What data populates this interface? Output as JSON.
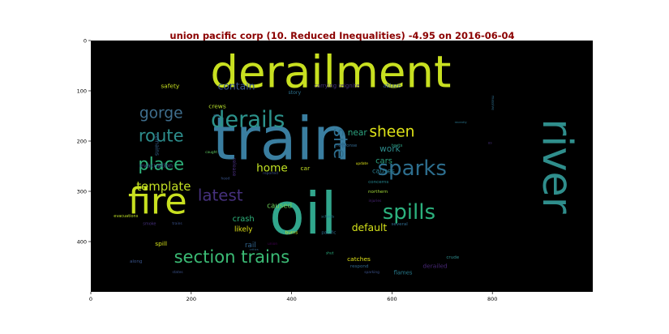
{
  "chart_data": {
    "type": "wordcloud",
    "title": "union pacific corp (10. Reduced Inequalities) -4.95 on 2016-06-04",
    "title_color": "#8b0000",
    "background": "#000000",
    "xlim": [
      0,
      1000
    ],
    "ylim": [
      500,
      0
    ],
    "x_ticks": [
      0,
      200,
      400,
      600,
      800
    ],
    "y_ticks": [
      0,
      100,
      200,
      300,
      400
    ],
    "words": [
      {
        "text": "derailment",
        "x": 478,
        "y": 62,
        "size": 88,
        "color": "#c8e020",
        "rotate": 0
      },
      {
        "text": "train",
        "x": 380,
        "y": 197,
        "size": 118,
        "color": "#3a7ea0",
        "rotate": 0
      },
      {
        "text": "oil",
        "x": 423,
        "y": 345,
        "size": 115,
        "color": "#31a68c",
        "rotate": 0
      },
      {
        "text": "fire",
        "x": 133,
        "y": 320,
        "size": 72,
        "color": "#c8e020",
        "rotate": 0
      },
      {
        "text": "river",
        "x": 930,
        "y": 250,
        "size": 82,
        "color": "#2f8e8c",
        "rotate": 90
      },
      {
        "text": "derails",
        "x": 313,
        "y": 158,
        "size": 44,
        "color": "#2c928b",
        "rotate": 0
      },
      {
        "text": "sparks",
        "x": 640,
        "y": 255,
        "size": 42,
        "color": "#2d6e8e",
        "rotate": 0
      },
      {
        "text": "spills",
        "x": 634,
        "y": 342,
        "size": 42,
        "color": "#2cb17e",
        "rotate": 0
      },
      {
        "text": "section trains",
        "x": 281,
        "y": 430,
        "size": 34,
        "color": "#3bbb75",
        "rotate": 0
      },
      {
        "text": "gorge",
        "x": 140,
        "y": 145,
        "size": 30,
        "color": "#3f6e8d",
        "rotate": 0
      },
      {
        "text": "route",
        "x": 140,
        "y": 189,
        "size": 34,
        "color": "#2d8d8c",
        "rotate": 0
      },
      {
        "text": "place",
        "x": 140,
        "y": 245,
        "size": 34,
        "color": "#2eb37c",
        "rotate": 0
      },
      {
        "text": "template",
        "x": 145,
        "y": 290,
        "size": 24,
        "color": "#c2df23",
        "rotate": 0
      },
      {
        "text": "latest",
        "x": 258,
        "y": 308,
        "size": 32,
        "color": "#46317e",
        "rotate": 0
      },
      {
        "text": "sheen",
        "x": 600,
        "y": 182,
        "size": 30,
        "color": "#dfe318",
        "rotate": 0
      },
      {
        "text": "site",
        "x": 497,
        "y": 205,
        "size": 34,
        "color": "#2e6e8e",
        "rotate": 90
      },
      {
        "text": "home",
        "x": 361,
        "y": 254,
        "size": 22,
        "color": "#c2e323",
        "rotate": 0
      },
      {
        "text": "contain",
        "x": 290,
        "y": 90,
        "size": 20,
        "color": "#39568c",
        "rotate": 0
      },
      {
        "text": "default",
        "x": 555,
        "y": 372,
        "size": 20,
        "color": "#d5e21a",
        "rotate": 0
      },
      {
        "text": "near",
        "x": 531,
        "y": 184,
        "size": 17,
        "color": "#2ca37f",
        "rotate": 0
      },
      {
        "text": "work",
        "x": 596,
        "y": 216,
        "size": 17,
        "color": "#2e8c8c",
        "rotate": 0
      },
      {
        "text": "cars",
        "x": 584,
        "y": 240,
        "size": 16,
        "color": "#2ba27f",
        "rotate": 0
      },
      {
        "text": "causes",
        "x": 583,
        "y": 260,
        "size": 13,
        "color": "#277a8e",
        "rotate": 0
      },
      {
        "text": "crash",
        "x": 304,
        "y": 356,
        "size": 16,
        "color": "#2eb37c",
        "rotate": 0
      },
      {
        "text": "likely",
        "x": 304,
        "y": 377,
        "size": 14,
        "color": "#e2e418",
        "rotate": 0
      },
      {
        "text": "rail",
        "x": 318,
        "y": 408,
        "size": 14,
        "color": "#32658e",
        "rotate": 0
      },
      {
        "text": "caused",
        "x": 376,
        "y": 330,
        "size": 14,
        "color": "#6dcd59",
        "rotate": 0
      },
      {
        "text": "safety",
        "x": 158,
        "y": 90,
        "size": 12,
        "color": "#c8e020",
        "rotate": 0
      },
      {
        "text": "crews",
        "x": 252,
        "y": 131,
        "size": 12,
        "color": "#b5de2b",
        "rotate": 0
      },
      {
        "text": "story",
        "x": 406,
        "y": 104,
        "size": 10,
        "color": "#2c718e",
        "rotate": 0
      },
      {
        "text": "carrying reignite",
        "x": 490,
        "y": 90,
        "size": 11,
        "color": "#46327e",
        "rotate": 0
      },
      {
        "text": "ablaze",
        "x": 600,
        "y": 90,
        "size": 11,
        "color": "#38588c",
        "rotate": 0
      },
      {
        "text": "pm",
        "x": 250,
        "y": 150,
        "size": 7,
        "color": "#33638d",
        "rotate": 0
      },
      {
        "text": "caught",
        "x": 240,
        "y": 223,
        "size": 7,
        "color": "#5ec962",
        "rotate": 0
      },
      {
        "text": "response",
        "x": 510,
        "y": 210,
        "size": 9,
        "color": "#31688e",
        "rotate": 0
      },
      {
        "text": "tests",
        "x": 610,
        "y": 210,
        "size": 9,
        "color": "#2c9f82",
        "rotate": 0
      },
      {
        "text": "update",
        "x": 540,
        "y": 246,
        "size": 7,
        "color": "#dde318",
        "rotate": 0
      },
      {
        "text": "recently",
        "x": 737,
        "y": 163,
        "size": 6,
        "color": "#2a768e",
        "rotate": 0
      },
      {
        "text": "massive",
        "x": 800,
        "y": 124,
        "size": 7,
        "color": "#2e6f8e",
        "rotate": 90
      },
      {
        "text": "us",
        "x": 795,
        "y": 205,
        "size": 7,
        "color": "#46307e",
        "rotate": 0
      },
      {
        "text": "remains",
        "x": 132,
        "y": 207,
        "size": 11,
        "color": "#33638d",
        "rotate": 90
      },
      {
        "text": "evacuation",
        "x": 130,
        "y": 248,
        "size": 12,
        "color": "#3b528b",
        "rotate": 0
      },
      {
        "text": "release",
        "x": 285,
        "y": 252,
        "size": 10,
        "color": "#472d7b",
        "rotate": 90
      },
      {
        "text": "reported",
        "x": 358,
        "y": 265,
        "size": 7,
        "color": "#3b528b",
        "rotate": 0
      },
      {
        "text": "hood",
        "x": 268,
        "y": 276,
        "size": 7,
        "color": "#3a548c",
        "rotate": 0
      },
      {
        "text": "car",
        "x": 427,
        "y": 254,
        "size": 12,
        "color": "#c2df23",
        "rotate": 0
      },
      {
        "text": "concerns",
        "x": 573,
        "y": 282,
        "size": 9,
        "color": "#25858e",
        "rotate": 0
      },
      {
        "text": "northern",
        "x": 572,
        "y": 302,
        "size": 9,
        "color": "#a2da37",
        "rotate": 0
      },
      {
        "text": "injuries",
        "x": 566,
        "y": 320,
        "size": 7,
        "color": "#482475",
        "rotate": 0
      },
      {
        "text": "evacuations",
        "x": 70,
        "y": 350,
        "size": 8,
        "color": "#bddf26",
        "rotate": 0
      },
      {
        "text": "smoke",
        "x": 117,
        "y": 365,
        "size": 8,
        "color": "#46307e",
        "rotate": 0
      },
      {
        "text": "trains",
        "x": 172,
        "y": 365,
        "size": 7,
        "color": "#3b528b",
        "rotate": 0
      },
      {
        "text": "schools",
        "x": 472,
        "y": 352,
        "size": 7,
        "color": "#2a788e",
        "rotate": 0
      },
      {
        "text": "several",
        "x": 615,
        "y": 366,
        "size": 9,
        "color": "#2f6b8e",
        "rotate": 0
      },
      {
        "text": "pacific",
        "x": 474,
        "y": 383,
        "size": 9,
        "color": "#2e6e8e",
        "rotate": 0
      },
      {
        "text": "burns",
        "x": 400,
        "y": 383,
        "size": 9,
        "color": "#c8e020",
        "rotate": 0
      },
      {
        "text": "spill",
        "x": 140,
        "y": 404,
        "size": 12,
        "color": "#d5e21a",
        "rotate": 0
      },
      {
        "text": "critics",
        "x": 325,
        "y": 416,
        "size": 6,
        "color": "#31688e",
        "rotate": 0
      },
      {
        "text": "union",
        "x": 362,
        "y": 406,
        "size": 7,
        "color": "#440154",
        "rotate": 0
      },
      {
        "text": "shut",
        "x": 476,
        "y": 424,
        "size": 7,
        "color": "#2ab07f",
        "rotate": 0
      },
      {
        "text": "catches",
        "x": 534,
        "y": 435,
        "size": 12,
        "color": "#e2e418",
        "rotate": 0
      },
      {
        "text": "respond",
        "x": 535,
        "y": 450,
        "size": 9,
        "color": "#31688e",
        "rotate": 0
      },
      {
        "text": "derailed",
        "x": 686,
        "y": 448,
        "size": 12,
        "color": "#482878",
        "rotate": 0
      },
      {
        "text": "crude",
        "x": 721,
        "y": 432,
        "size": 9,
        "color": "#2e8b8c",
        "rotate": 0
      },
      {
        "text": "along",
        "x": 90,
        "y": 440,
        "size": 9,
        "color": "#3a548c",
        "rotate": 0
      },
      {
        "text": "states",
        "x": 173,
        "y": 462,
        "size": 7,
        "color": "#3b528b",
        "rotate": 0
      },
      {
        "text": "sparking",
        "x": 560,
        "y": 462,
        "size": 7,
        "color": "#3b528b",
        "rotate": 0
      },
      {
        "text": "flames",
        "x": 622,
        "y": 462,
        "size": 11,
        "color": "#287c8e",
        "rotate": 0
      }
    ]
  }
}
